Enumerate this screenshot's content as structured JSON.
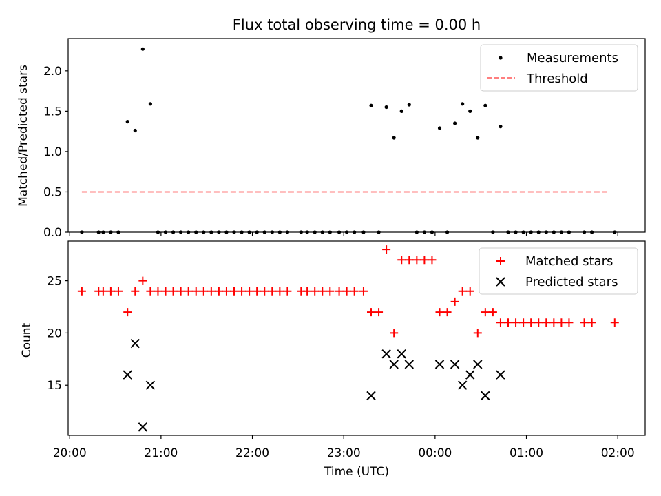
{
  "figure": {
    "title": "Flux total observing time = 0.00 h",
    "xlabel": "Time (UTC)"
  },
  "chart_data": [
    {
      "type": "scatter",
      "name": "ratio-panel",
      "ylabel": "Matched/Predicted stars",
      "ylim": [
        0,
        2.4
      ],
      "yticks": [
        0.0,
        0.5,
        1.0,
        1.5,
        2.0
      ],
      "ytick_labels": [
        "0.0",
        "0.5",
        "1.0",
        "1.5",
        "2.0"
      ],
      "xlim": [
        "19:59",
        "02:18"
      ],
      "legend": {
        "placement": "top-right",
        "entries": [
          "Measurements",
          "Threshold"
        ]
      },
      "series": [
        {
          "name": "Measurements",
          "marker": "dot",
          "color": "#000000",
          "points": [
            [
              "20:08",
              0
            ],
            [
              "20:19",
              0
            ],
            [
              "20:22",
              0
            ],
            [
              "20:27",
              0
            ],
            [
              "20:32",
              0
            ],
            [
              "20:38",
              1.37
            ],
            [
              "20:43",
              1.26
            ],
            [
              "20:48",
              2.27
            ],
            [
              "20:53",
              1.59
            ],
            [
              "20:58",
              0
            ],
            [
              "21:03",
              0
            ],
            [
              "21:08",
              0
            ],
            [
              "21:13",
              0
            ],
            [
              "21:18",
              0
            ],
            [
              "21:23",
              0
            ],
            [
              "21:28",
              0
            ],
            [
              "21:33",
              0
            ],
            [
              "21:38",
              0
            ],
            [
              "21:43",
              0
            ],
            [
              "21:48",
              0
            ],
            [
              "21:53",
              0
            ],
            [
              "21:58",
              0
            ],
            [
              "22:03",
              0
            ],
            [
              "22:08",
              0
            ],
            [
              "22:13",
              0
            ],
            [
              "22:18",
              0
            ],
            [
              "22:23",
              0
            ],
            [
              "22:32",
              0
            ],
            [
              "22:36",
              0
            ],
            [
              "22:41",
              0
            ],
            [
              "22:46",
              0
            ],
            [
              "22:51",
              0
            ],
            [
              "22:57",
              0
            ],
            [
              "23:02",
              0
            ],
            [
              "23:07",
              0
            ],
            [
              "23:13",
              0
            ],
            [
              "23:18",
              1.57
            ],
            [
              "23:23",
              0
            ],
            [
              "23:28",
              1.55
            ],
            [
              "23:33",
              1.17
            ],
            [
              "23:38",
              1.5
            ],
            [
              "23:43",
              1.58
            ],
            [
              "23:48",
              0
            ],
            [
              "23:53",
              0
            ],
            [
              "23:58",
              0
            ],
            [
              "00:03",
              1.29
            ],
            [
              "00:08",
              0
            ],
            [
              "00:13",
              1.35
            ],
            [
              "00:18",
              1.59
            ],
            [
              "00:23",
              1.5
            ],
            [
              "00:28",
              1.17
            ],
            [
              "00:33",
              1.57
            ],
            [
              "00:38",
              0
            ],
            [
              "00:43",
              1.31
            ],
            [
              "00:48",
              0
            ],
            [
              "00:53",
              0
            ],
            [
              "00:58",
              0
            ],
            [
              "01:03",
              0
            ],
            [
              "01:08",
              0
            ],
            [
              "01:13",
              0
            ],
            [
              "01:18",
              0
            ],
            [
              "01:23",
              0
            ],
            [
              "01:28",
              0
            ],
            [
              "01:38",
              0
            ],
            [
              "01:43",
              0
            ],
            [
              "01:58",
              0
            ]
          ]
        },
        {
          "name": "Threshold",
          "marker": "dashed-line",
          "color": "#ff7f7f",
          "points": [
            [
              "20:08",
              0.5
            ],
            [
              "01:53",
              0.5
            ]
          ]
        }
      ]
    },
    {
      "type": "scatter",
      "name": "count-panel",
      "ylabel": "Count",
      "ylim": [
        10.2,
        28.8
      ],
      "yticks": [
        15,
        20,
        25
      ],
      "ytick_labels": [
        "15",
        "20",
        "25"
      ],
      "xlim": [
        "19:59",
        "02:18"
      ],
      "xticks": [
        "20:00",
        "21:00",
        "22:00",
        "23:00",
        "00:00",
        "01:00",
        "02:00"
      ],
      "legend": {
        "placement": "top-right",
        "entries": [
          "Matched stars",
          "Predicted stars"
        ]
      },
      "series": [
        {
          "name": "Matched stars",
          "marker": "plus",
          "color": "#ff0000",
          "points": [
            [
              "20:08",
              24
            ],
            [
              "20:19",
              24
            ],
            [
              "20:22",
              24
            ],
            [
              "20:27",
              24
            ],
            [
              "20:32",
              24
            ],
            [
              "20:38",
              22
            ],
            [
              "20:43",
              24
            ],
            [
              "20:48",
              25
            ],
            [
              "20:53",
              24
            ],
            [
              "20:58",
              24
            ],
            [
              "21:03",
              24
            ],
            [
              "21:08",
              24
            ],
            [
              "21:13",
              24
            ],
            [
              "21:18",
              24
            ],
            [
              "21:23",
              24
            ],
            [
              "21:28",
              24
            ],
            [
              "21:33",
              24
            ],
            [
              "21:38",
              24
            ],
            [
              "21:43",
              24
            ],
            [
              "21:48",
              24
            ],
            [
              "21:53",
              24
            ],
            [
              "21:58",
              24
            ],
            [
              "22:03",
              24
            ],
            [
              "22:08",
              24
            ],
            [
              "22:13",
              24
            ],
            [
              "22:18",
              24
            ],
            [
              "22:23",
              24
            ],
            [
              "22:32",
              24
            ],
            [
              "22:36",
              24
            ],
            [
              "22:41",
              24
            ],
            [
              "22:46",
              24
            ],
            [
              "22:51",
              24
            ],
            [
              "22:57",
              24
            ],
            [
              "23:02",
              24
            ],
            [
              "23:07",
              24
            ],
            [
              "23:13",
              24
            ],
            [
              "23:18",
              22
            ],
            [
              "23:23",
              22
            ],
            [
              "23:28",
              28
            ],
            [
              "23:33",
              20
            ],
            [
              "23:38",
              27
            ],
            [
              "23:43",
              27
            ],
            [
              "23:48",
              27
            ],
            [
              "23:53",
              27
            ],
            [
              "23:58",
              27
            ],
            [
              "00:03",
              22
            ],
            [
              "00:08",
              22
            ],
            [
              "00:13",
              23
            ],
            [
              "00:18",
              24
            ],
            [
              "00:23",
              24
            ],
            [
              "00:28",
              20
            ],
            [
              "00:33",
              22
            ],
            [
              "00:38",
              22
            ],
            [
              "00:43",
              21
            ],
            [
              "00:48",
              21
            ],
            [
              "00:53",
              21
            ],
            [
              "00:58",
              21
            ],
            [
              "01:03",
              21
            ],
            [
              "01:08",
              21
            ],
            [
              "01:13",
              21
            ],
            [
              "01:18",
              21
            ],
            [
              "01:23",
              21
            ],
            [
              "01:28",
              21
            ],
            [
              "01:38",
              21
            ],
            [
              "01:43",
              21
            ],
            [
              "01:58",
              21
            ]
          ]
        },
        {
          "name": "Predicted stars",
          "marker": "x",
          "color": "#000000",
          "points": [
            [
              "20:38",
              16
            ],
            [
              "20:43",
              19
            ],
            [
              "20:48",
              11
            ],
            [
              "20:53",
              15
            ],
            [
              "23:18",
              14
            ],
            [
              "23:28",
              18
            ],
            [
              "23:33",
              17
            ],
            [
              "23:38",
              18
            ],
            [
              "23:43",
              17
            ],
            [
              "00:03",
              17
            ],
            [
              "00:13",
              17
            ],
            [
              "00:18",
              15
            ],
            [
              "00:23",
              16
            ],
            [
              "00:28",
              17
            ],
            [
              "00:33",
              14
            ],
            [
              "00:43",
              16
            ]
          ]
        }
      ]
    }
  ]
}
